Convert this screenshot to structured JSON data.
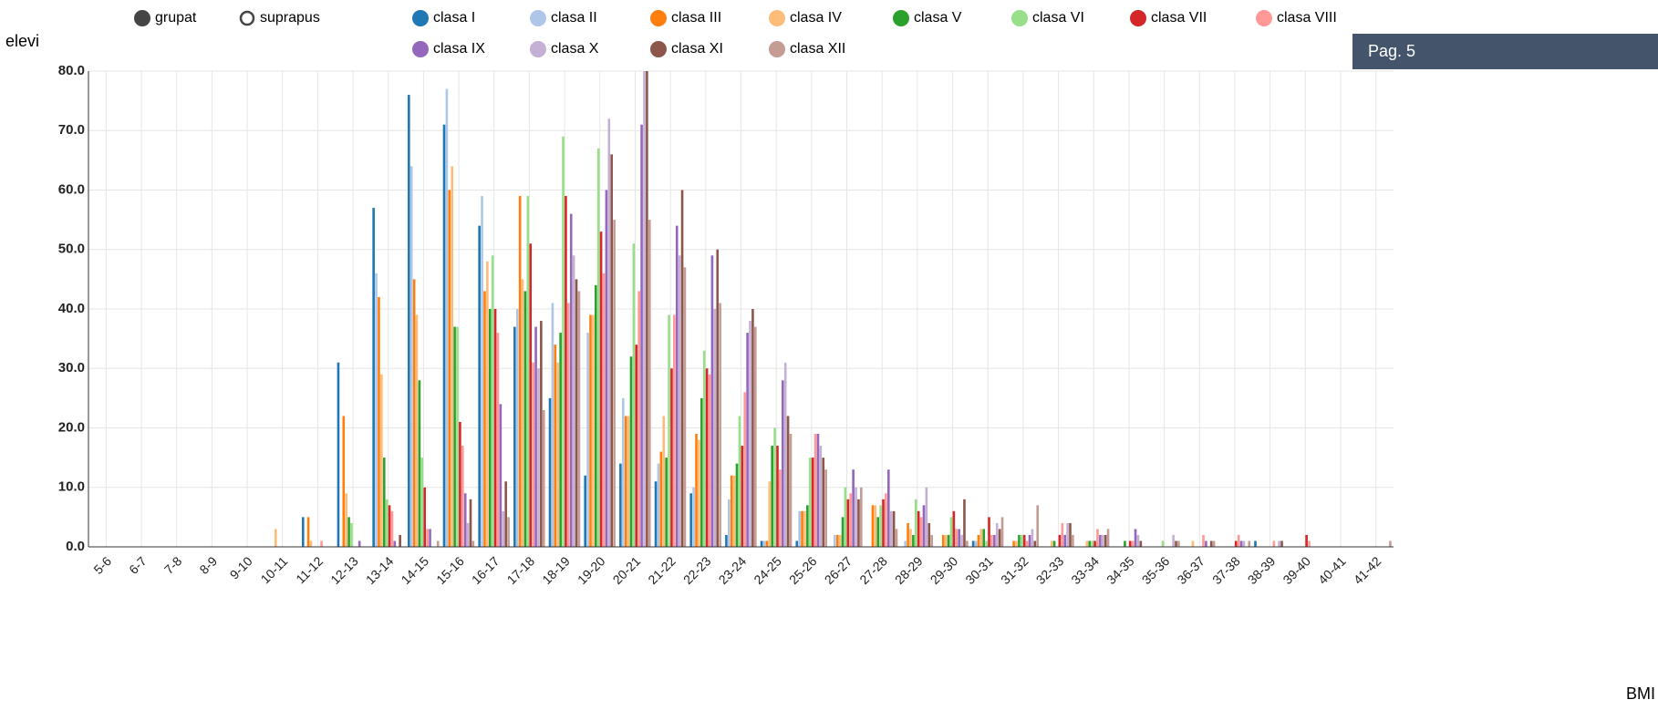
{
  "chart_data": {
    "type": "bar",
    "y_label": "elevi",
    "x_label": "BMI",
    "mode_options": [
      "grupat",
      "suprapus"
    ],
    "categories": [
      "5-6",
      "6-7",
      "7-8",
      "8-9",
      "9-10",
      "10-11",
      "11-12",
      "12-13",
      "13-14",
      "14-15",
      "15-16",
      "16-17",
      "17-18",
      "18-19",
      "19-20",
      "20-21",
      "21-22",
      "22-23",
      "23-24",
      "24-25",
      "25-26",
      "26-27",
      "27-28",
      "28-29",
      "29-30",
      "30-31",
      "31-32",
      "32-33",
      "33-34",
      "34-35",
      "35-36",
      "36-37",
      "37-38",
      "38-39",
      "39-40",
      "40-41",
      "41-42"
    ],
    "series": [
      {
        "name": "clasa I",
        "color": "#1f77b4",
        "values": [
          0,
          0,
          0,
          0,
          0,
          0,
          5,
          31,
          57,
          76,
          71,
          54,
          37,
          25,
          12,
          14,
          11,
          9,
          2,
          1,
          1,
          0,
          0,
          0,
          0,
          1,
          0,
          0,
          0,
          0,
          0,
          0,
          0,
          1,
          0,
          0,
          0
        ]
      },
      {
        "name": "clasa II",
        "color": "#aec7e8",
        "values": [
          0,
          0,
          0,
          0,
          0,
          0,
          0,
          0,
          46,
          64,
          77,
          59,
          40,
          41,
          36,
          25,
          14,
          10,
          8,
          1,
          6,
          2,
          0,
          1,
          0,
          1,
          0,
          0,
          0,
          0,
          0,
          0,
          0,
          0,
          0,
          0,
          0
        ]
      },
      {
        "name": "clasa III",
        "color": "#ff7f0e",
        "values": [
          0,
          0,
          0,
          0,
          0,
          0,
          5,
          22,
          42,
          45,
          60,
          43,
          59,
          34,
          39,
          22,
          16,
          19,
          12,
          1,
          6,
          2,
          7,
          4,
          2,
          2,
          1,
          0,
          0,
          0,
          0,
          0,
          0,
          0,
          0,
          0,
          0
        ]
      },
      {
        "name": "clasa IV",
        "color": "#ffbb78",
        "values": [
          0,
          0,
          0,
          0,
          0,
          3,
          1,
          9,
          29,
          39,
          64,
          48,
          45,
          31,
          39,
          22,
          22,
          18,
          12,
          11,
          6,
          2,
          7,
          3,
          2,
          3,
          1,
          1,
          1,
          0,
          0,
          1,
          0,
          0,
          0,
          0,
          0
        ]
      },
      {
        "name": "clasa V",
        "color": "#2ca02c",
        "values": [
          0,
          0,
          0,
          0,
          0,
          0,
          0,
          5,
          15,
          28,
          37,
          40,
          43,
          36,
          44,
          32,
          15,
          25,
          14,
          17,
          7,
          5,
          5,
          2,
          2,
          3,
          2,
          1,
          1,
          1,
          0,
          0,
          0,
          0,
          0,
          0,
          0
        ]
      },
      {
        "name": "clasa VI",
        "color": "#98df8a",
        "values": [
          0,
          0,
          0,
          0,
          0,
          0,
          0,
          4,
          8,
          15,
          37,
          49,
          59,
          69,
          67,
          51,
          39,
          33,
          22,
          20,
          15,
          10,
          7,
          8,
          5,
          1,
          2,
          0,
          1,
          0,
          1,
          0,
          0,
          0,
          0,
          0,
          0
        ]
      },
      {
        "name": "clasa VII",
        "color": "#d62728",
        "values": [
          0,
          0,
          0,
          0,
          0,
          0,
          0,
          0,
          7,
          10,
          21,
          40,
          51,
          59,
          53,
          34,
          30,
          30,
          17,
          17,
          15,
          8,
          8,
          6,
          6,
          5,
          2,
          2,
          1,
          1,
          0,
          0,
          1,
          0,
          2,
          0,
          0
        ]
      },
      {
        "name": "clasa VIII",
        "color": "#ff9896",
        "values": [
          0,
          0,
          0,
          0,
          0,
          0,
          1,
          0,
          6,
          3,
          17,
          36,
          31,
          41,
          46,
          43,
          39,
          29,
          26,
          13,
          19,
          9,
          9,
          5,
          3,
          2,
          1,
          4,
          3,
          1,
          0,
          2,
          2,
          1,
          1,
          0,
          0
        ]
      },
      {
        "name": "clasa IX",
        "color": "#9467bd",
        "values": [
          0,
          0,
          0,
          0,
          0,
          0,
          0,
          1,
          1,
          3,
          9,
          24,
          37,
          56,
          60,
          71,
          54,
          49,
          36,
          28,
          19,
          13,
          13,
          7,
          3,
          2,
          2,
          2,
          2,
          3,
          0,
          1,
          1,
          0,
          0,
          0,
          0
        ]
      },
      {
        "name": "clasa X",
        "color": "#c5b0d5",
        "values": [
          0,
          0,
          0,
          0,
          0,
          0,
          0,
          0,
          0,
          0,
          4,
          6,
          30,
          49,
          72,
          80,
          49,
          40,
          38,
          31,
          17,
          10,
          6,
          10,
          2,
          4,
          3,
          4,
          2,
          2,
          2,
          0,
          1,
          1,
          0,
          0,
          0
        ]
      },
      {
        "name": "clasa XI",
        "color": "#8c564b",
        "values": [
          0,
          0,
          0,
          0,
          0,
          0,
          0,
          0,
          2,
          0,
          8,
          11,
          38,
          45,
          66,
          80,
          60,
          50,
          40,
          22,
          15,
          8,
          6,
          4,
          8,
          3,
          1,
          4,
          2,
          1,
          1,
          1,
          0,
          1,
          0,
          0,
          0
        ]
      },
      {
        "name": "clasa XII",
        "color": "#c49c94",
        "values": [
          0,
          0,
          0,
          0,
          0,
          0,
          0,
          0,
          0,
          1,
          1,
          5,
          23,
          43,
          55,
          55,
          47,
          41,
          37,
          19,
          13,
          10,
          3,
          2,
          1,
          5,
          7,
          2,
          3,
          0,
          1,
          1,
          1,
          0,
          0,
          0,
          1
        ]
      }
    ],
    "ylim": [
      0,
      80
    ],
    "yticks": [
      {
        "value": 0,
        "label": "0.0"
      },
      {
        "value": 10,
        "label": "10.0"
      },
      {
        "value": 20,
        "label": "20.0"
      },
      {
        "value": 30,
        "label": "30.0"
      },
      {
        "value": 40,
        "label": "40.0"
      },
      {
        "value": 50,
        "label": "50.0"
      },
      {
        "value": 60,
        "label": "60.0"
      },
      {
        "value": 70,
        "label": "70.0"
      },
      {
        "value": 80,
        "label": "80.0"
      }
    ],
    "grid": true
  },
  "page": {
    "label": "Pag. 5"
  }
}
